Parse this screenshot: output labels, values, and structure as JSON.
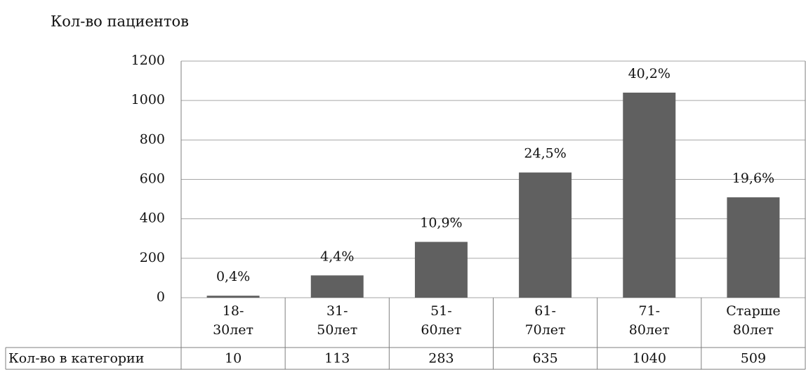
{
  "chart_data": {
    "type": "bar",
    "title": "Кол-во пациентов",
    "categories": [
      "18-30лет",
      "31-50лет",
      "51-60лет",
      "61-70лет",
      "71-80лет",
      "Старше 80лет"
    ],
    "values": [
      10,
      113,
      283,
      635,
      1040,
      509
    ],
    "annotations": [
      "0,4%",
      "4,4%",
      "10,9%",
      "24,5%",
      "40,2%",
      "19,6%"
    ],
    "table_row_label": "Кол-во в категории",
    "color": "#606060",
    "ylim": [
      0,
      1200
    ],
    "yticks": [
      0,
      200,
      400,
      600,
      800,
      1000,
      1200
    ],
    "grid": true
  }
}
